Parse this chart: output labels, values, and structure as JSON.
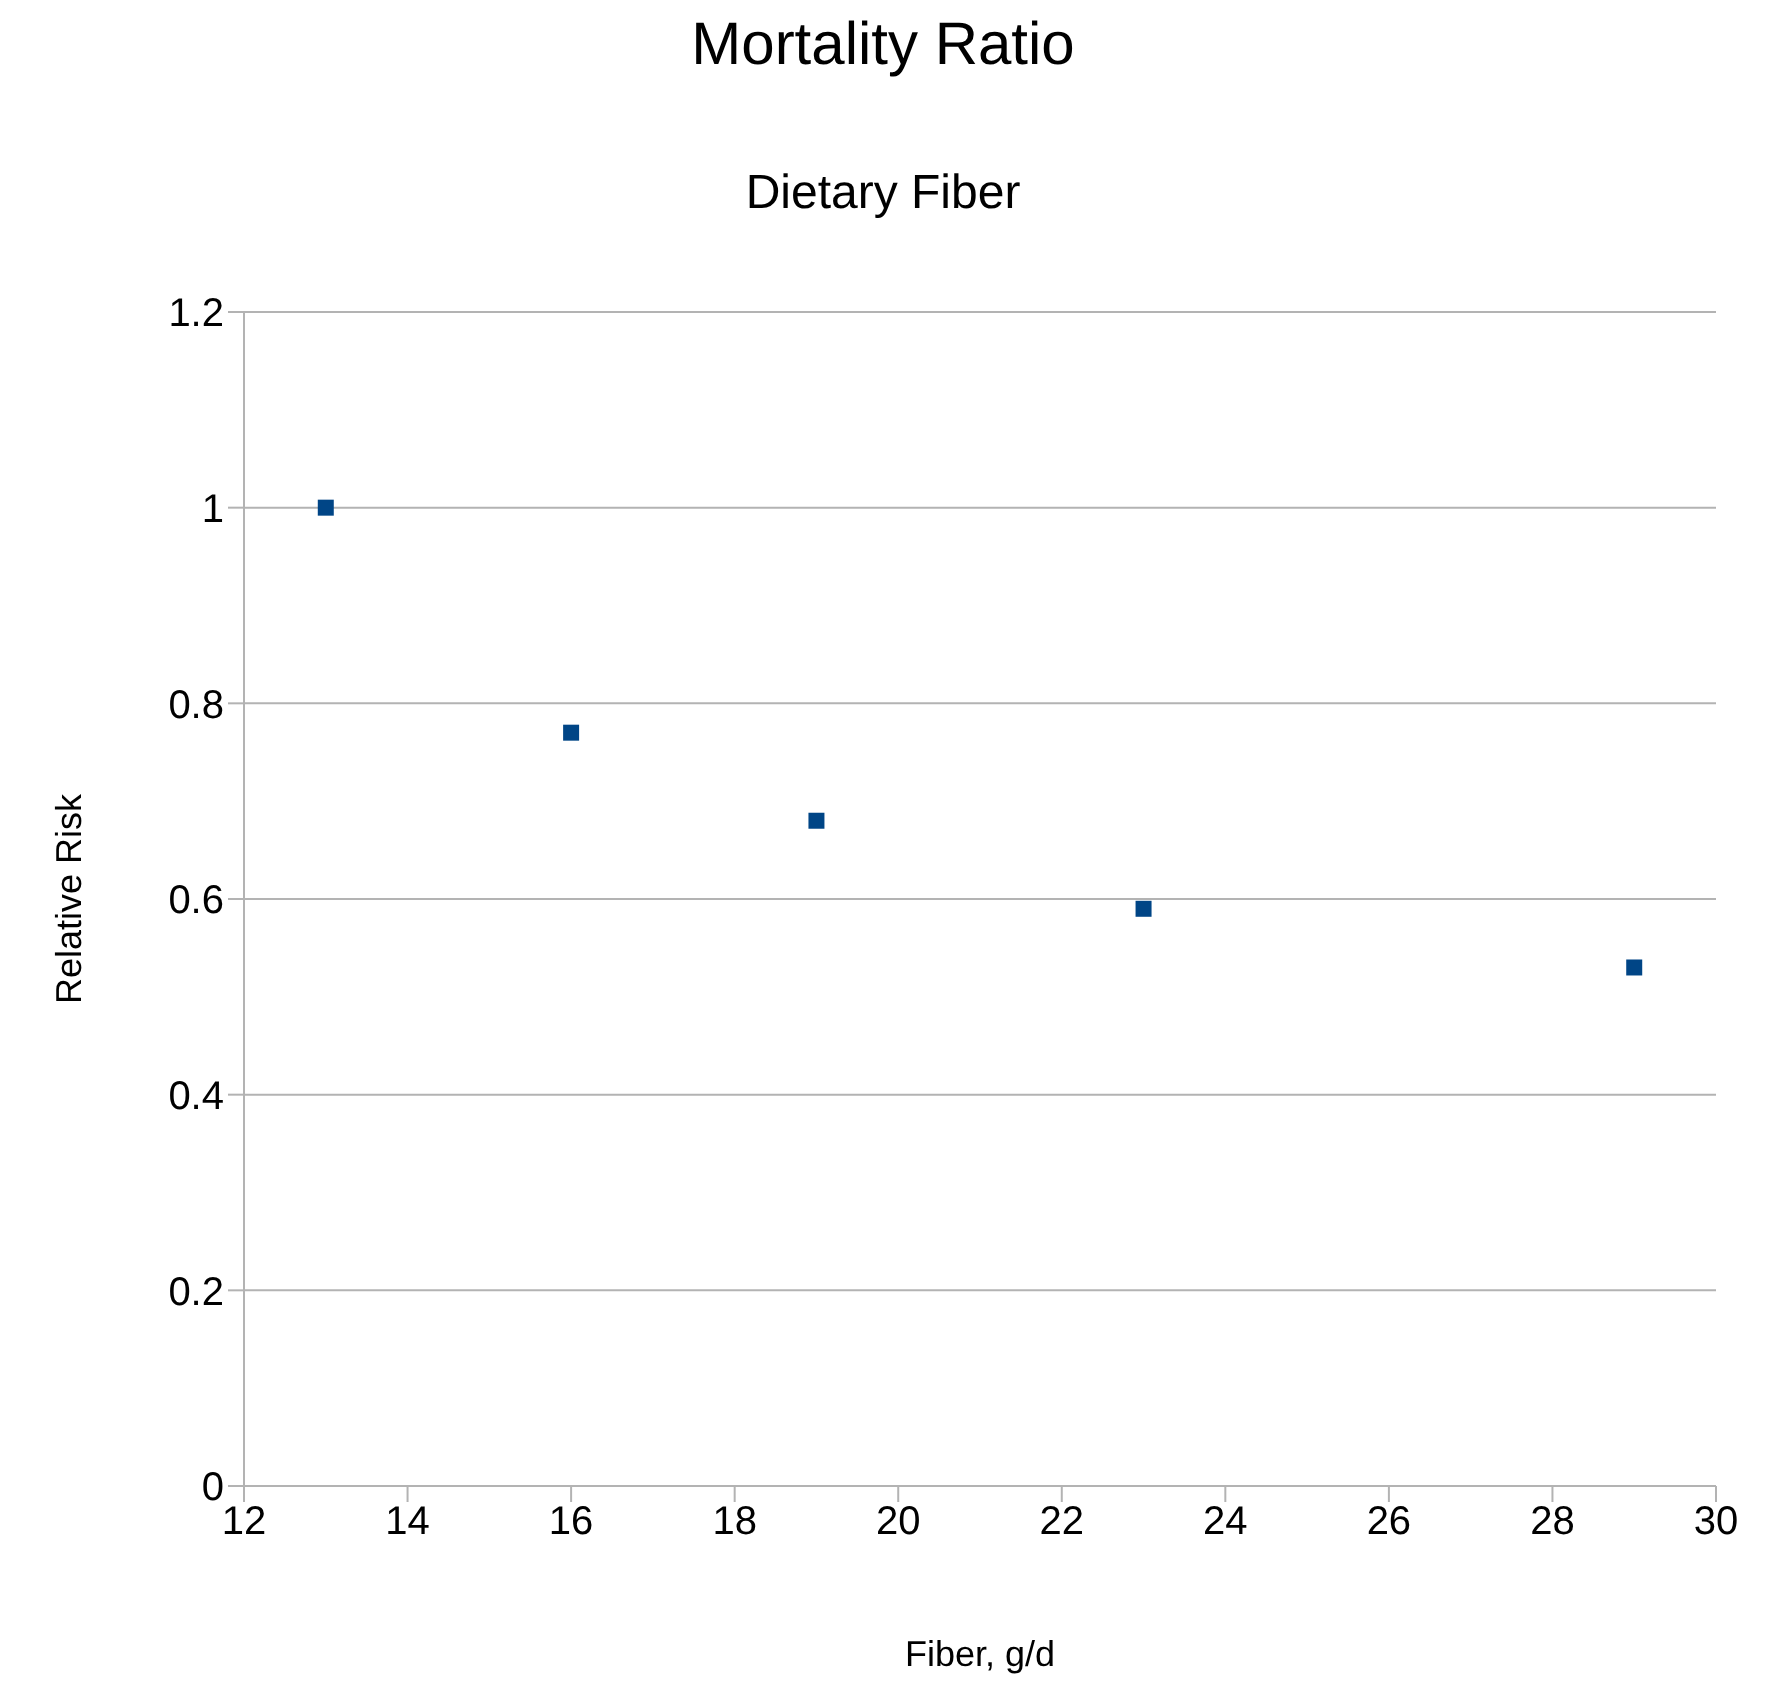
{
  "chart_data": {
    "type": "scatter",
    "title": "Mortality Ratio",
    "subtitle": "Dietary Fiber",
    "xlabel": "Fiber, g/d",
    "ylabel": "Relative Risk",
    "x": [
      13,
      16,
      19,
      23,
      29
    ],
    "series": [
      {
        "color": "#004586",
        "values": [
          1,
          0.77,
          0.68,
          0.59,
          0.53
        ]
      }
    ],
    "xlim": [
      12,
      30
    ],
    "xticks": [
      12,
      14,
      16,
      18,
      20,
      22,
      24,
      26,
      28,
      30
    ],
    "ylim": [
      0,
      1.2
    ],
    "yticks": [
      0,
      0.2,
      0.4,
      0.6,
      0.8,
      1,
      1.2
    ],
    "grid": "y",
    "marker": "square",
    "legend": false
  }
}
